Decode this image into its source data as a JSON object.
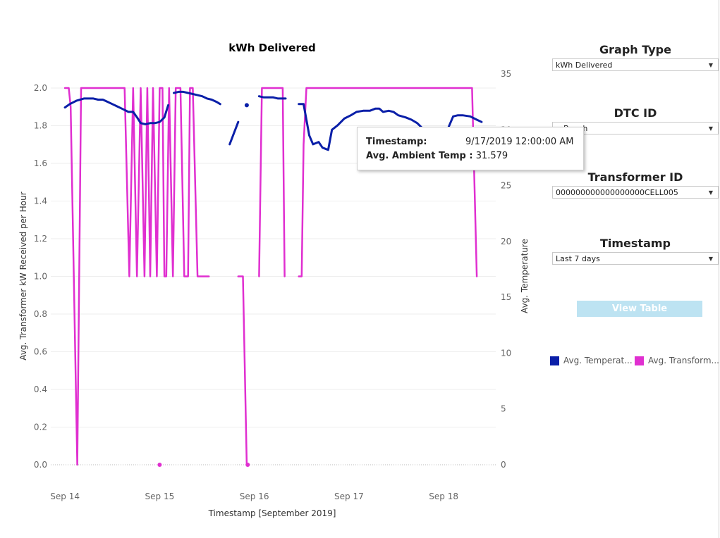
{
  "chart_data": {
    "type": "line",
    "title": "kWh Delivered",
    "xlabel": "Timestamp [September 2019]",
    "ylabel": "Avg. Transformer kW Received per Hour",
    "y2label": "Avg. Temperature",
    "x_ticks": [
      "Sep 14",
      "Sep 15",
      "Sep 16",
      "Sep 17",
      "Sep 18"
    ],
    "y_ticks": [
      "0.0",
      "0.2",
      "0.4",
      "0.6",
      "0.8",
      "1.0",
      "1.2",
      "1.4",
      "1.6",
      "1.8",
      "2.0"
    ],
    "y2_ticks": [
      "0",
      "5",
      "10",
      "15",
      "20",
      "25",
      "30",
      "35"
    ],
    "ylim": [
      0,
      2.0
    ],
    "y2lim": [
      0,
      35
    ],
    "xlim_days": [
      13.85,
      18.55
    ],
    "grid": true,
    "series": [
      {
        "name": "Avg. Transform...",
        "axis": "left",
        "color": "#e02fd0",
        "segments": [
          [
            [
              14.0,
              2.0
            ],
            [
              14.04,
              2.0
            ],
            [
              14.06,
              1.9
            ],
            [
              14.13,
              0.0
            ],
            [
              14.17,
              2.0
            ],
            [
              14.6,
              2.0
            ],
            [
              14.63,
              2.0
            ],
            [
              14.68,
              1.0
            ],
            [
              14.72,
              2.0
            ],
            [
              14.76,
              1.0
            ],
            [
              14.8,
              2.0
            ],
            [
              14.84,
              1.0
            ],
            [
              14.87,
              2.0
            ],
            [
              14.9,
              1.0
            ],
            [
              14.93,
              2.0
            ],
            [
              14.97,
              1.0
            ],
            [
              15.0,
              2.0
            ],
            [
              15.03,
              2.0
            ],
            [
              15.05,
              1.0
            ],
            [
              15.07,
              1.0
            ],
            [
              15.1,
              2.0
            ],
            [
              15.14,
              1.0
            ],
            [
              15.17,
              2.0
            ],
            [
              15.22,
              2.0
            ],
            [
              15.26,
              1.0
            ],
            [
              15.3,
              1.0
            ],
            [
              15.32,
              2.0
            ],
            [
              15.35,
              2.0
            ],
            [
              15.4,
              1.0
            ],
            [
              15.5,
              1.0
            ],
            [
              15.52,
              1.0
            ]
          ],
          [
            [
              15.83,
              1.0
            ],
            [
              15.88,
              1.0
            ],
            [
              15.9,
              0.5
            ],
            [
              15.92,
              0.0
            ],
            [
              15.93,
              0.0
            ]
          ],
          [
            [
              16.05,
              1.0
            ],
            [
              16.08,
              2.0
            ],
            [
              16.3,
              2.0
            ],
            [
              16.32,
              1.0
            ]
          ],
          [
            [
              16.47,
              1.0
            ],
            [
              16.5,
              1.0
            ],
            [
              16.52,
              1.7
            ],
            [
              16.55,
              2.0
            ],
            [
              16.75,
              2.0
            ],
            [
              17.5,
              2.0
            ],
            [
              18.0,
              2.0
            ],
            [
              18.3,
              2.0
            ],
            [
              18.35,
              1.0
            ]
          ]
        ],
        "points": [
          [
            15.0,
            0.0
          ],
          [
            15.93,
            0.0
          ]
        ]
      },
      {
        "name": "Avg. Temperat...",
        "axis": "right",
        "color": "#0a1fa8",
        "segments": [
          [
            [
              14.0,
              32.0
            ],
            [
              14.05,
              32.3
            ],
            [
              14.12,
              32.6
            ],
            [
              14.2,
              32.8
            ],
            [
              14.3,
              32.8
            ],
            [
              14.35,
              32.7
            ],
            [
              14.4,
              32.7
            ],
            [
              14.45,
              32.5
            ],
            [
              14.5,
              32.3
            ],
            [
              14.55,
              32.1
            ],
            [
              14.6,
              31.9
            ],
            [
              14.67,
              31.6
            ],
            [
              14.72,
              31.6
            ],
            [
              14.77,
              31.0
            ],
            [
              14.8,
              30.6
            ],
            [
              14.85,
              30.5
            ],
            [
              14.9,
              30.6
            ],
            [
              14.95,
              30.6
            ],
            [
              15.0,
              30.7
            ],
            [
              15.05,
              31.1
            ],
            [
              15.09,
              32.2
            ]
          ],
          [
            [
              15.15,
              33.3
            ],
            [
              15.2,
              33.4
            ],
            [
              15.25,
              33.4
            ],
            [
              15.3,
              33.3
            ],
            [
              15.35,
              33.2
            ],
            [
              15.4,
              33.1
            ],
            [
              15.45,
              33.0
            ],
            [
              15.5,
              32.8
            ],
            [
              15.55,
              32.7
            ],
            [
              15.6,
              32.5
            ],
            [
              15.64,
              32.3
            ]
          ],
          [
            [
              15.74,
              28.7
            ],
            [
              15.83,
              30.7
            ]
          ],
          [
            [
              16.05,
              33.0
            ],
            [
              16.1,
              32.9
            ],
            [
              16.2,
              32.9
            ],
            [
              16.25,
              32.8
            ],
            [
              16.33,
              32.8
            ]
          ],
          [
            [
              16.47,
              32.3
            ],
            [
              16.52,
              32.3
            ],
            [
              16.58,
              29.5
            ],
            [
              16.62,
              28.7
            ],
            [
              16.68,
              28.9
            ],
            [
              16.72,
              28.4
            ],
            [
              16.78,
              28.2
            ],
            [
              16.82,
              30.0
            ],
            [
              16.88,
              30.4
            ],
            [
              16.95,
              31.0
            ],
            [
              17.02,
              31.3
            ],
            [
              17.08,
              31.6
            ],
            [
              17.15,
              31.7
            ],
            [
              17.22,
              31.7
            ],
            [
              17.28,
              31.9
            ],
            [
              17.32,
              31.9
            ],
            [
              17.36,
              31.6
            ],
            [
              17.42,
              31.7
            ],
            [
              17.47,
              31.6
            ],
            [
              17.52,
              31.3
            ],
            [
              17.6,
              31.1
            ],
            [
              17.66,
              30.9
            ],
            [
              17.72,
              30.6
            ],
            [
              17.78,
              30.1
            ],
            [
              17.84,
              30.0
            ],
            [
              17.9,
              29.9
            ],
            [
              17.95,
              29.9
            ],
            [
              18.0,
              30.0
            ],
            [
              18.05,
              30.2
            ],
            [
              18.1,
              31.2
            ],
            [
              18.15,
              31.3
            ],
            [
              18.2,
              31.3
            ],
            [
              18.28,
              31.2
            ],
            [
              18.35,
              30.9
            ],
            [
              18.4,
              30.7
            ]
          ]
        ],
        "points": [
          [
            15.92,
            32.2
          ]
        ]
      }
    ]
  },
  "controls": {
    "graph_type": {
      "title": "Graph Type",
      "value": "kWh Delivered"
    },
    "dtc_id": {
      "title": "DTC ID",
      "value": "…Bench"
    },
    "transformer_id": {
      "title": "Transformer ID",
      "value": "000000000000000000CELL005"
    },
    "timestamp": {
      "title": "Timestamp",
      "value": "Last 7 days"
    },
    "view_table_label": "View Table"
  },
  "legend": [
    {
      "label": "Avg. Temperat...",
      "color": "#0a1fa8"
    },
    {
      "label": "Avg. Transform...",
      "color": "#e02fd0"
    }
  ],
  "tooltip": {
    "timestamp_label": "Timestamp:",
    "timestamp_value": "9/17/2019 12:00:00 AM",
    "temp_label": "Avg. Ambient Temp :",
    "temp_value": "31.579"
  }
}
